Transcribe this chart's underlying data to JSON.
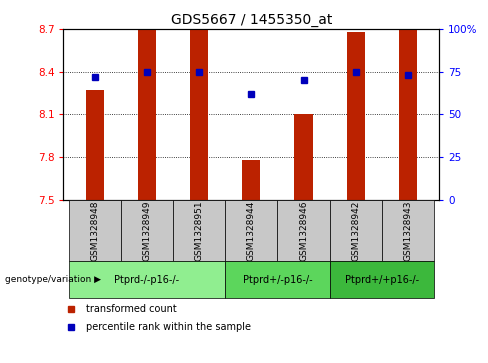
{
  "title": "GDS5667 / 1455350_at",
  "samples": [
    "GSM1328948",
    "GSM1328949",
    "GSM1328951",
    "GSM1328944",
    "GSM1328946",
    "GSM1328942",
    "GSM1328943"
  ],
  "bar_values": [
    8.27,
    8.7,
    8.7,
    7.78,
    8.1,
    8.68,
    8.7
  ],
  "percentile_values": [
    72,
    75,
    75,
    62,
    70,
    75,
    73
  ],
  "ylim_left": [
    7.5,
    8.7
  ],
  "ylim_right": [
    0,
    100
  ],
  "yticks_left": [
    7.5,
    7.8,
    8.1,
    8.4,
    8.7
  ],
  "yticks_right": [
    0,
    25,
    50,
    75,
    100
  ],
  "groups": [
    {
      "label": "Ptprd-/-p16-/-",
      "samples": [
        0,
        1,
        2
      ],
      "color": "#90EE90"
    },
    {
      "label": "Ptprd+/-p16-/-",
      "samples": [
        3,
        4
      ],
      "color": "#5CD65C"
    },
    {
      "label": "Ptprd+/+p16-/-",
      "samples": [
        5,
        6
      ],
      "color": "#3CB83C"
    }
  ],
  "bar_color": "#BB2200",
  "dot_color": "#0000BB",
  "bar_bottom": 7.5,
  "bar_width": 0.35,
  "cell_bg": "#C8C8C8",
  "legend_bar_label": "transformed count",
  "legend_dot_label": "percentile rank within the sample",
  "genotype_label": "genotype/variation",
  "title_fontsize": 10,
  "tick_fontsize": 7.5,
  "label_fontsize": 7,
  "sample_fontsize": 6.5
}
